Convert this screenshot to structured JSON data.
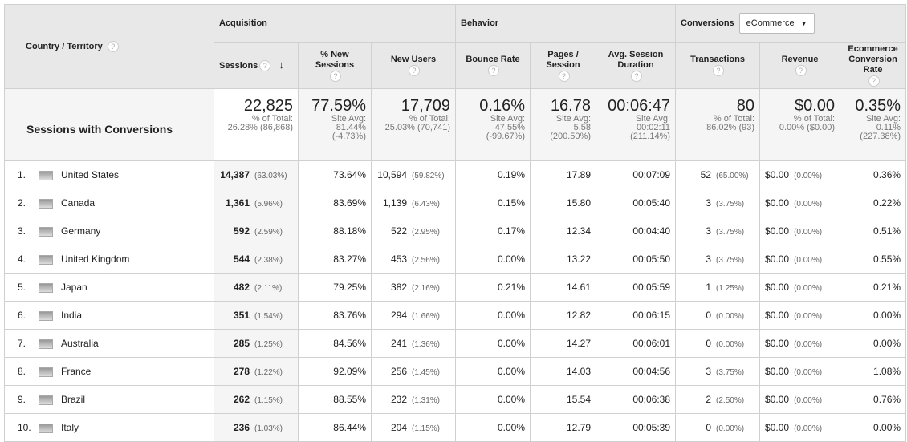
{
  "header": {
    "country": "Country / Territory",
    "acquisition": "Acquisition",
    "behavior": "Behavior",
    "conversions": "Conversions",
    "conversion_select": "eCommerce",
    "columns": [
      "Sessions",
      "% New Sessions",
      "New Users",
      "Bounce Rate",
      "Pages / Session",
      "Avg. Session Duration",
      "Transactions",
      "Revenue",
      "Ecommerce Conversion Rate"
    ]
  },
  "summary": {
    "label": "Sessions with Conversions",
    "cells": [
      {
        "value": "22,825",
        "l1": "% of Total:",
        "l2": "26.28% (86,868)",
        "l3": ""
      },
      {
        "value": "77.59%",
        "l1": "Site Avg:",
        "l2": "81.44%",
        "l3": "(-4.73%)"
      },
      {
        "value": "17,709",
        "l1": "% of Total:",
        "l2": "25.03% (70,741)",
        "l3": ""
      },
      {
        "value": "0.16%",
        "l1": "Site Avg:",
        "l2": "47.55%",
        "l3": "(-99.67%)"
      },
      {
        "value": "16.78",
        "l1": "Site Avg:",
        "l2": "5.58",
        "l3": "(200.50%)"
      },
      {
        "value": "00:06:47",
        "l1": "Site Avg:",
        "l2": "00:02:11",
        "l3": "(211.14%)"
      },
      {
        "value": "80",
        "l1": "% of Total:",
        "l2": "86.02% (93)",
        "l3": ""
      },
      {
        "value": "$0.00",
        "l1": "% of Total:",
        "l2": "0.00% ($0.00)",
        "l3": ""
      },
      {
        "value": "0.35%",
        "l1": "Site Avg:",
        "l2": "0.11%",
        "l3": "(227.38%)"
      }
    ]
  },
  "rows": [
    {
      "idx": "1.",
      "country": "United States",
      "sessions": "14,387",
      "sessions_pct": "(63.03%)",
      "new_sessions": "73.64%",
      "new_users": "10,594",
      "new_users_pct": "(59.82%)",
      "bounce": "0.19%",
      "pages": "17.89",
      "duration": "00:07:09",
      "transactions": "52",
      "transactions_pct": "(65.00%)",
      "revenue": "$0.00",
      "revenue_pct": "(0.00%)",
      "conv_rate": "0.36%"
    },
    {
      "idx": "2.",
      "country": "Canada",
      "sessions": "1,361",
      "sessions_pct": "(5.96%)",
      "new_sessions": "83.69%",
      "new_users": "1,139",
      "new_users_pct": "(6.43%)",
      "bounce": "0.15%",
      "pages": "15.80",
      "duration": "00:05:40",
      "transactions": "3",
      "transactions_pct": "(3.75%)",
      "revenue": "$0.00",
      "revenue_pct": "(0.00%)",
      "conv_rate": "0.22%"
    },
    {
      "idx": "3.",
      "country": "Germany",
      "sessions": "592",
      "sessions_pct": "(2.59%)",
      "new_sessions": "88.18%",
      "new_users": "522",
      "new_users_pct": "(2.95%)",
      "bounce": "0.17%",
      "pages": "12.34",
      "duration": "00:04:40",
      "transactions": "3",
      "transactions_pct": "(3.75%)",
      "revenue": "$0.00",
      "revenue_pct": "(0.00%)",
      "conv_rate": "0.51%"
    },
    {
      "idx": "4.",
      "country": "United Kingdom",
      "sessions": "544",
      "sessions_pct": "(2.38%)",
      "new_sessions": "83.27%",
      "new_users": "453",
      "new_users_pct": "(2.56%)",
      "bounce": "0.00%",
      "pages": "13.22",
      "duration": "00:05:50",
      "transactions": "3",
      "transactions_pct": "(3.75%)",
      "revenue": "$0.00",
      "revenue_pct": "(0.00%)",
      "conv_rate": "0.55%"
    },
    {
      "idx": "5.",
      "country": "Japan",
      "sessions": "482",
      "sessions_pct": "(2.11%)",
      "new_sessions": "79.25%",
      "new_users": "382",
      "new_users_pct": "(2.16%)",
      "bounce": "0.21%",
      "pages": "14.61",
      "duration": "00:05:59",
      "transactions": "1",
      "transactions_pct": "(1.25%)",
      "revenue": "$0.00",
      "revenue_pct": "(0.00%)",
      "conv_rate": "0.21%"
    },
    {
      "idx": "6.",
      "country": "India",
      "sessions": "351",
      "sessions_pct": "(1.54%)",
      "new_sessions": "83.76%",
      "new_users": "294",
      "new_users_pct": "(1.66%)",
      "bounce": "0.00%",
      "pages": "12.82",
      "duration": "00:06:15",
      "transactions": "0",
      "transactions_pct": "(0.00%)",
      "revenue": "$0.00",
      "revenue_pct": "(0.00%)",
      "conv_rate": "0.00%"
    },
    {
      "idx": "7.",
      "country": "Australia",
      "sessions": "285",
      "sessions_pct": "(1.25%)",
      "new_sessions": "84.56%",
      "new_users": "241",
      "new_users_pct": "(1.36%)",
      "bounce": "0.00%",
      "pages": "14.27",
      "duration": "00:06:01",
      "transactions": "0",
      "transactions_pct": "(0.00%)",
      "revenue": "$0.00",
      "revenue_pct": "(0.00%)",
      "conv_rate": "0.00%"
    },
    {
      "idx": "8.",
      "country": "France",
      "sessions": "278",
      "sessions_pct": "(1.22%)",
      "new_sessions": "92.09%",
      "new_users": "256",
      "new_users_pct": "(1.45%)",
      "bounce": "0.00%",
      "pages": "14.03",
      "duration": "00:04:56",
      "transactions": "3",
      "transactions_pct": "(3.75%)",
      "revenue": "$0.00",
      "revenue_pct": "(0.00%)",
      "conv_rate": "1.08%"
    },
    {
      "idx": "9.",
      "country": "Brazil",
      "sessions": "262",
      "sessions_pct": "(1.15%)",
      "new_sessions": "88.55%",
      "new_users": "232",
      "new_users_pct": "(1.31%)",
      "bounce": "0.00%",
      "pages": "15.54",
      "duration": "00:06:38",
      "transactions": "2",
      "transactions_pct": "(2.50%)",
      "revenue": "$0.00",
      "revenue_pct": "(0.00%)",
      "conv_rate": "0.76%"
    },
    {
      "idx": "10.",
      "country": "Italy",
      "sessions": "236",
      "sessions_pct": "(1.03%)",
      "new_sessions": "86.44%",
      "new_users": "204",
      "new_users_pct": "(1.15%)",
      "bounce": "0.00%",
      "pages": "12.79",
      "duration": "00:05:39",
      "transactions": "0",
      "transactions_pct": "(0.00%)",
      "revenue": "$0.00",
      "revenue_pct": "(0.00%)",
      "conv_rate": "0.00%"
    }
  ]
}
